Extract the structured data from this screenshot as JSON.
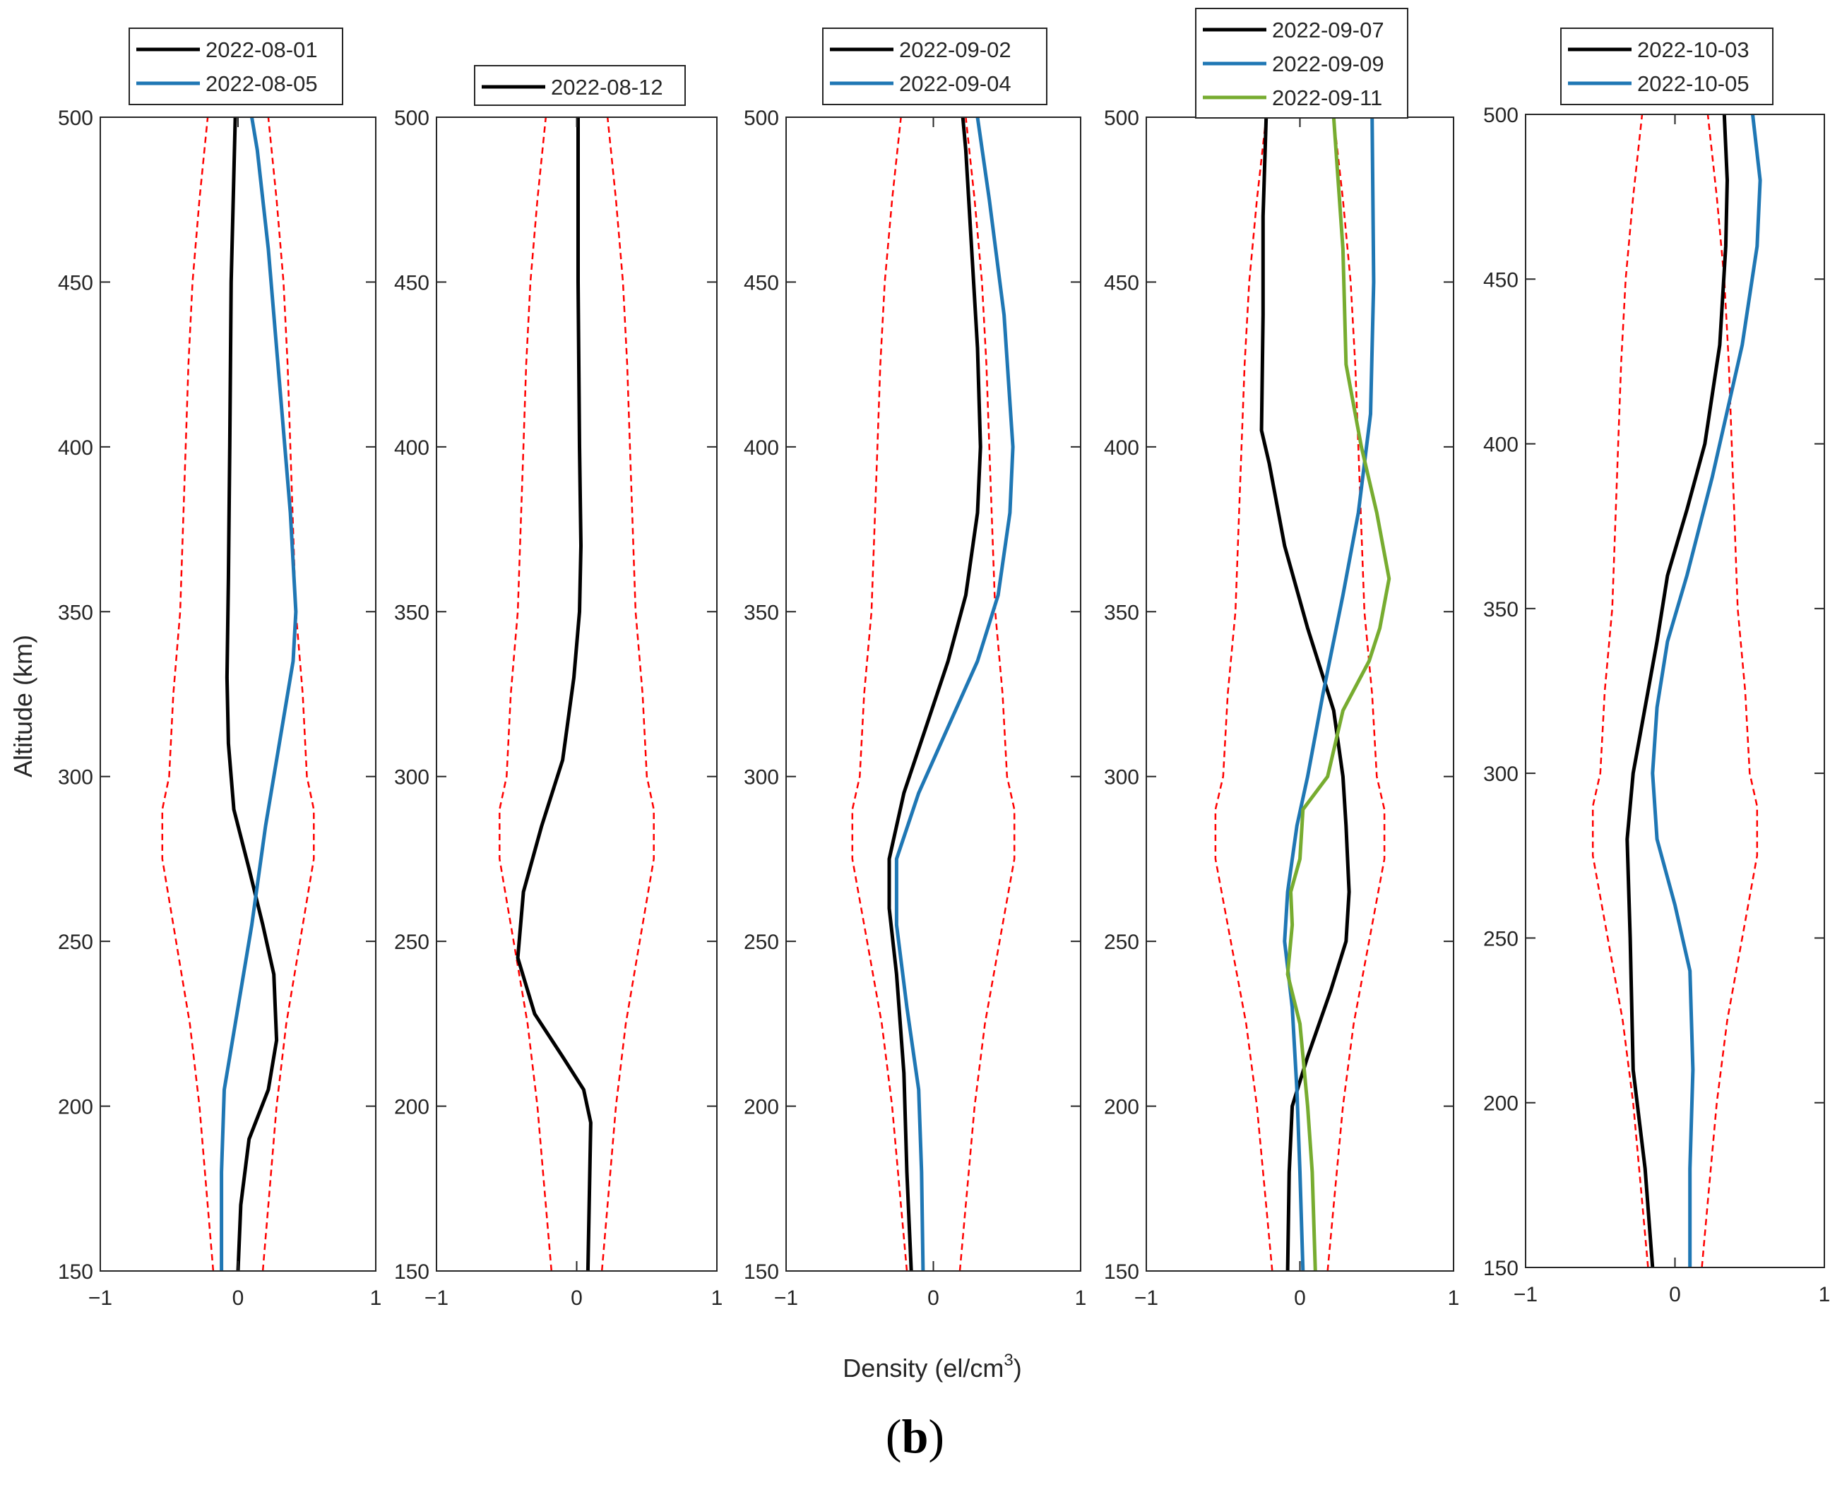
{
  "figure": {
    "ylabel": "Altitude (km)",
    "xlabel_base": "Density (el/cm",
    "xlabel_sup": "3",
    "xlabel_close": ")",
    "caption_open": "(",
    "caption_letter": "b",
    "caption_close": ")"
  },
  "colors": {
    "black": "#000000",
    "blue": "#1f77b4",
    "green": "#77ac30",
    "bound": "#ff0000",
    "axis": "#262626"
  },
  "chart_data": [
    {
      "type": "line",
      "panel": 1,
      "xlim": [
        -1,
        1
      ],
      "ylim": [
        150,
        500
      ],
      "xticks": [
        "−1",
        "0",
        "1"
      ],
      "yticks": [
        "150",
        "200",
        "250",
        "300",
        "350",
        "400",
        "450",
        "500"
      ],
      "series": [
        {
          "name": "2022-08-01",
          "color": "#000000",
          "points": [
            [
              0.0,
              150
            ],
            [
              0.02,
              170
            ],
            [
              0.08,
              190
            ],
            [
              0.22,
              205
            ],
            [
              0.28,
              220
            ],
            [
              0.26,
              240
            ],
            [
              0.18,
              255
            ],
            [
              0.08,
              272
            ],
            [
              -0.03,
              290
            ],
            [
              -0.07,
              310
            ],
            [
              -0.08,
              330
            ],
            [
              -0.07,
              360
            ],
            [
              -0.06,
              400
            ],
            [
              -0.05,
              450
            ],
            [
              -0.02,
              500
            ]
          ]
        },
        {
          "name": "2022-08-05",
          "color": "#1f77b4",
          "points": [
            [
              -0.12,
              150
            ],
            [
              -0.12,
              180
            ],
            [
              -0.1,
              205
            ],
            [
              0.0,
              230
            ],
            [
              0.1,
              255
            ],
            [
              0.2,
              285
            ],
            [
              0.3,
              310
            ],
            [
              0.4,
              335
            ],
            [
              0.42,
              350
            ],
            [
              0.38,
              380
            ],
            [
              0.3,
              420
            ],
            [
              0.22,
              460
            ],
            [
              0.14,
              490
            ],
            [
              0.1,
              500
            ]
          ]
        }
      ],
      "bounds": {
        "altitude": [
          150,
          175,
          200,
          225,
          250,
          275,
          290,
          300,
          325,
          350,
          375,
          400,
          425,
          450,
          475,
          500
        ],
        "lower": [
          -0.18,
          -0.23,
          -0.28,
          -0.35,
          -0.45,
          -0.55,
          -0.55,
          -0.5,
          -0.47,
          -0.42,
          -0.4,
          -0.38,
          -0.36,
          -0.33,
          -0.28,
          -0.22
        ],
        "upper": [
          0.18,
          0.23,
          0.28,
          0.35,
          0.45,
          0.55,
          0.55,
          0.5,
          0.47,
          0.42,
          0.4,
          0.38,
          0.36,
          0.33,
          0.28,
          0.22
        ]
      }
    },
    {
      "type": "line",
      "panel": 2,
      "xlim": [
        -1,
        1
      ],
      "ylim": [
        150,
        500
      ],
      "xticks": [
        "−1",
        "0",
        "1"
      ],
      "yticks": [
        "150",
        "200",
        "250",
        "300",
        "350",
        "400",
        "450",
        "500"
      ],
      "series": [
        {
          "name": "2022-08-12",
          "color": "#000000",
          "points": [
            [
              0.08,
              150
            ],
            [
              0.1,
              195
            ],
            [
              0.05,
              205
            ],
            [
              -0.1,
              215
            ],
            [
              -0.3,
              228
            ],
            [
              -0.42,
              245
            ],
            [
              -0.38,
              265
            ],
            [
              -0.25,
              285
            ],
            [
              -0.1,
              305
            ],
            [
              -0.02,
              330
            ],
            [
              0.02,
              350
            ],
            [
              0.03,
              370
            ],
            [
              0.02,
              400
            ],
            [
              0.01,
              450
            ],
            [
              0.01,
              500
            ]
          ]
        }
      ],
      "bounds": {
        "altitude": [
          150,
          175,
          200,
          225,
          250,
          275,
          290,
          300,
          325,
          350,
          375,
          400,
          425,
          450,
          475,
          500
        ],
        "lower": [
          -0.18,
          -0.23,
          -0.28,
          -0.35,
          -0.45,
          -0.55,
          -0.55,
          -0.5,
          -0.47,
          -0.42,
          -0.4,
          -0.38,
          -0.36,
          -0.33,
          -0.28,
          -0.22
        ],
        "upper": [
          0.18,
          0.23,
          0.28,
          0.35,
          0.45,
          0.55,
          0.55,
          0.5,
          0.47,
          0.42,
          0.4,
          0.38,
          0.36,
          0.33,
          0.28,
          0.22
        ]
      }
    },
    {
      "type": "line",
      "panel": 3,
      "xlim": [
        -1,
        1
      ],
      "ylim": [
        150,
        500
      ],
      "xticks": [
        "−1",
        "0",
        "1"
      ],
      "yticks": [
        "150",
        "200",
        "250",
        "300",
        "350",
        "400",
        "450",
        "500"
      ],
      "series": [
        {
          "name": "2022-09-02",
          "color": "#000000",
          "points": [
            [
              -0.15,
              150
            ],
            [
              -0.18,
              180
            ],
            [
              -0.2,
              210
            ],
            [
              -0.25,
              240
            ],
            [
              -0.3,
              260
            ],
            [
              -0.3,
              275
            ],
            [
              -0.2,
              295
            ],
            [
              -0.05,
              315
            ],
            [
              0.1,
              335
            ],
            [
              0.22,
              355
            ],
            [
              0.3,
              380
            ],
            [
              0.32,
              400
            ],
            [
              0.3,
              430
            ],
            [
              0.26,
              460
            ],
            [
              0.22,
              490
            ],
            [
              0.2,
              500
            ]
          ]
        },
        {
          "name": "2022-09-04",
          "color": "#1f77b4",
          "points": [
            [
              -0.07,
              150
            ],
            [
              -0.08,
              180
            ],
            [
              -0.1,
              205
            ],
            [
              -0.18,
              230
            ],
            [
              -0.25,
              255
            ],
            [
              -0.25,
              275
            ],
            [
              -0.1,
              295
            ],
            [
              0.1,
              315
            ],
            [
              0.3,
              335
            ],
            [
              0.44,
              355
            ],
            [
              0.52,
              380
            ],
            [
              0.54,
              400
            ],
            [
              0.48,
              440
            ],
            [
              0.38,
              475
            ],
            [
              0.3,
              500
            ]
          ]
        }
      ],
      "bounds": {
        "altitude": [
          150,
          175,
          200,
          225,
          250,
          275,
          290,
          300,
          325,
          350,
          375,
          400,
          425,
          450,
          475,
          500
        ],
        "lower": [
          -0.18,
          -0.23,
          -0.28,
          -0.35,
          -0.45,
          -0.55,
          -0.55,
          -0.5,
          -0.47,
          -0.42,
          -0.4,
          -0.38,
          -0.36,
          -0.33,
          -0.28,
          -0.22
        ],
        "upper": [
          0.18,
          0.23,
          0.28,
          0.35,
          0.45,
          0.55,
          0.55,
          0.5,
          0.47,
          0.42,
          0.4,
          0.38,
          0.36,
          0.33,
          0.28,
          0.22
        ]
      }
    },
    {
      "type": "line",
      "panel": 4,
      "xlim": [
        -1,
        1
      ],
      "ylim": [
        150,
        500
      ],
      "xticks": [
        "−1",
        "0",
        "1"
      ],
      "yticks": [
        "150",
        "200",
        "250",
        "300",
        "350",
        "400",
        "450",
        "500"
      ],
      "series": [
        {
          "name": "2022-09-07",
          "color": "#000000",
          "points": [
            [
              -0.08,
              150
            ],
            [
              -0.07,
              180
            ],
            [
              -0.05,
              200
            ],
            [
              0.05,
              215
            ],
            [
              0.2,
              235
            ],
            [
              0.3,
              250
            ],
            [
              0.32,
              265
            ],
            [
              0.3,
              285
            ],
            [
              0.28,
              300
            ],
            [
              0.22,
              320
            ],
            [
              0.05,
              345
            ],
            [
              -0.1,
              370
            ],
            [
              -0.2,
              395
            ],
            [
              -0.25,
              405
            ],
            [
              -0.24,
              440
            ],
            [
              -0.24,
              470
            ],
            [
              -0.22,
              500
            ]
          ]
        },
        {
          "name": "2022-09-09",
          "color": "#1f77b4",
          "points": [
            [
              0.02,
              150
            ],
            [
              0.0,
              180
            ],
            [
              -0.02,
              205
            ],
            [
              -0.05,
              230
            ],
            [
              -0.1,
              250
            ],
            [
              -0.08,
              265
            ],
            [
              -0.02,
              285
            ],
            [
              0.05,
              300
            ],
            [
              0.15,
              325
            ],
            [
              0.28,
              355
            ],
            [
              0.38,
              380
            ],
            [
              0.46,
              410
            ],
            [
              0.48,
              450
            ],
            [
              0.47,
              500
            ]
          ]
        },
        {
          "name": "2022-09-11",
          "color": "#77ac30",
          "points": [
            [
              0.1,
              150
            ],
            [
              0.08,
              180
            ],
            [
              0.05,
              200
            ],
            [
              0.0,
              225
            ],
            [
              -0.08,
              240
            ],
            [
              -0.05,
              255
            ],
            [
              -0.06,
              265
            ],
            [
              0.0,
              275
            ],
            [
              0.02,
              290
            ],
            [
              0.18,
              300
            ],
            [
              0.28,
              320
            ],
            [
              0.45,
              335
            ],
            [
              0.52,
              345
            ],
            [
              0.58,
              360
            ],
            [
              0.5,
              380
            ],
            [
              0.4,
              400
            ],
            [
              0.3,
              425
            ],
            [
              0.28,
              460
            ],
            [
              0.22,
              500
            ]
          ]
        }
      ],
      "bounds": {
        "altitude": [
          150,
          175,
          200,
          225,
          250,
          275,
          290,
          300,
          325,
          350,
          375,
          400,
          425,
          450,
          475,
          500
        ],
        "lower": [
          -0.18,
          -0.23,
          -0.28,
          -0.35,
          -0.45,
          -0.55,
          -0.55,
          -0.5,
          -0.47,
          -0.42,
          -0.4,
          -0.38,
          -0.36,
          -0.33,
          -0.28,
          -0.22
        ],
        "upper": [
          0.18,
          0.23,
          0.28,
          0.35,
          0.45,
          0.55,
          0.55,
          0.5,
          0.47,
          0.42,
          0.4,
          0.38,
          0.36,
          0.33,
          0.28,
          0.22
        ]
      }
    },
    {
      "type": "line",
      "panel": 5,
      "xlim": [
        -1,
        1
      ],
      "ylim": [
        150,
        500
      ],
      "xticks": [
        "−1",
        "0",
        "1"
      ],
      "yticks": [
        "150",
        "200",
        "250",
        "300",
        "350",
        "400",
        "450",
        "500"
      ],
      "series": [
        {
          "name": "2022-10-03",
          "color": "#000000",
          "points": [
            [
              -0.15,
              150
            ],
            [
              -0.2,
              180
            ],
            [
              -0.28,
              210
            ],
            [
              -0.3,
              250
            ],
            [
              -0.32,
              280
            ],
            [
              -0.28,
              300
            ],
            [
              -0.2,
              320
            ],
            [
              -0.12,
              340
            ],
            [
              -0.05,
              360
            ],
            [
              0.08,
              380
            ],
            [
              0.2,
              400
            ],
            [
              0.3,
              430
            ],
            [
              0.34,
              460
            ],
            [
              0.35,
              480
            ],
            [
              0.33,
              500
            ]
          ]
        },
        {
          "name": "2022-10-05",
          "color": "#1f77b4",
          "points": [
            [
              0.1,
              150
            ],
            [
              0.1,
              180
            ],
            [
              0.12,
              210
            ],
            [
              0.1,
              240
            ],
            [
              0.0,
              260
            ],
            [
              -0.12,
              280
            ],
            [
              -0.15,
              300
            ],
            [
              -0.12,
              320
            ],
            [
              -0.05,
              340
            ],
            [
              0.08,
              360
            ],
            [
              0.25,
              390
            ],
            [
              0.45,
              430
            ],
            [
              0.55,
              460
            ],
            [
              0.57,
              480
            ],
            [
              0.52,
              500
            ]
          ]
        }
      ],
      "bounds": {
        "altitude": [
          150,
          175,
          200,
          225,
          250,
          275,
          290,
          300,
          325,
          350,
          375,
          400,
          425,
          450,
          475,
          500
        ],
        "lower": [
          -0.18,
          -0.23,
          -0.28,
          -0.35,
          -0.45,
          -0.55,
          -0.55,
          -0.5,
          -0.47,
          -0.42,
          -0.4,
          -0.38,
          -0.36,
          -0.33,
          -0.28,
          -0.22
        ],
        "upper": [
          0.18,
          0.23,
          0.28,
          0.35,
          0.45,
          0.55,
          0.55,
          0.5,
          0.47,
          0.42,
          0.4,
          0.38,
          0.36,
          0.33,
          0.28,
          0.22
        ]
      }
    }
  ]
}
